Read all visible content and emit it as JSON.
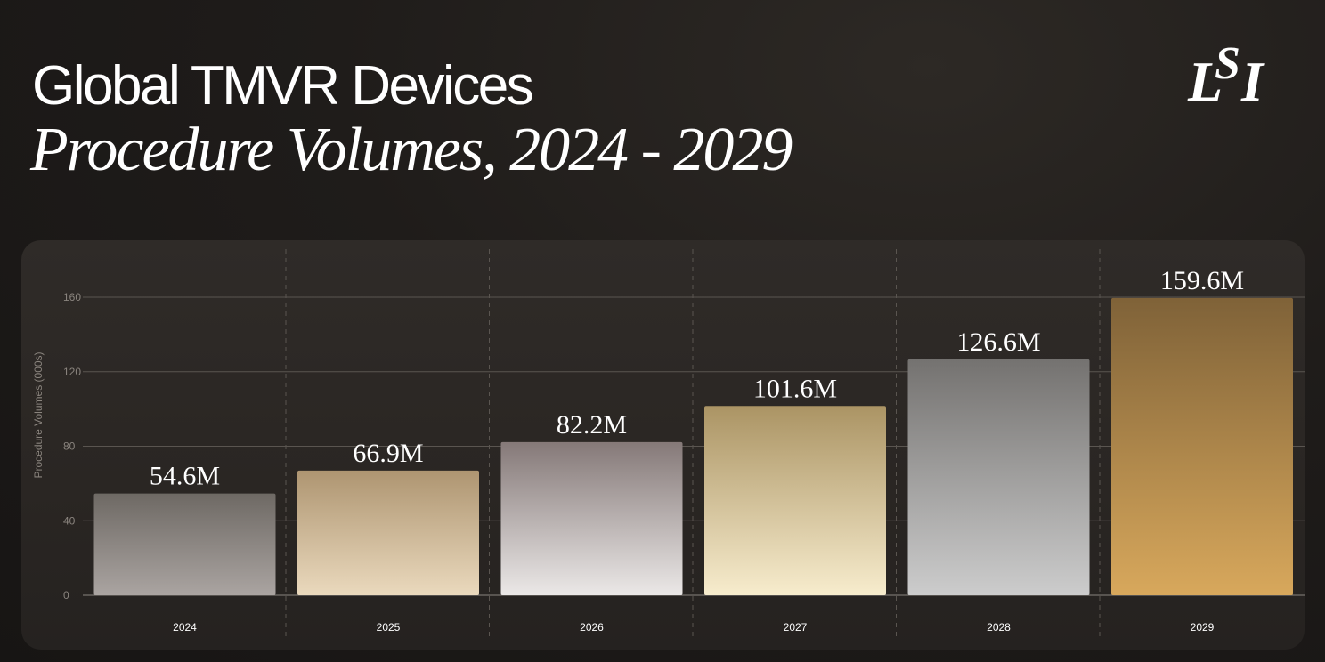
{
  "header": {
    "title": "Global TMVR Devices",
    "subtitle": "Procedure Volumes, 2024 - 2029"
  },
  "logo": {
    "letters": [
      "L",
      "S",
      "I"
    ]
  },
  "chart_data": {
    "type": "bar",
    "title": "Global TMVR Devices",
    "subtitle": "Procedure Volumes, 2024 - 2029",
    "categories": [
      "2024",
      "2025",
      "2026",
      "2027",
      "2028",
      "2029"
    ],
    "values": [
      54.6,
      66.9,
      82.2,
      101.6,
      126.6,
      159.6
    ],
    "value_labels": [
      "54.6M",
      "66.9M",
      "82.2M",
      "101.6M",
      "126.6M",
      "159.6M"
    ],
    "xlabel": "",
    "ylabel": "Procedure Volumes (000s)",
    "ylim": [
      0,
      160
    ],
    "yticks": [
      0,
      40,
      80,
      120,
      160
    ],
    "grid": true,
    "colors": {
      "text": "#ffffff",
      "axis_text": "#8a847e",
      "grid": "#5a5550",
      "bar_gradients": [
        [
          "#6e6964",
          "#aaa4a1"
        ],
        [
          "#ae9571",
          "#ead9bd"
        ],
        [
          "#857978",
          "#ebe8e7"
        ],
        [
          "#ab9464",
          "#f7eccd"
        ],
        [
          "#747270",
          "#cccccc"
        ],
        [
          "#7f6238",
          "#d8a85c"
        ]
      ]
    }
  }
}
